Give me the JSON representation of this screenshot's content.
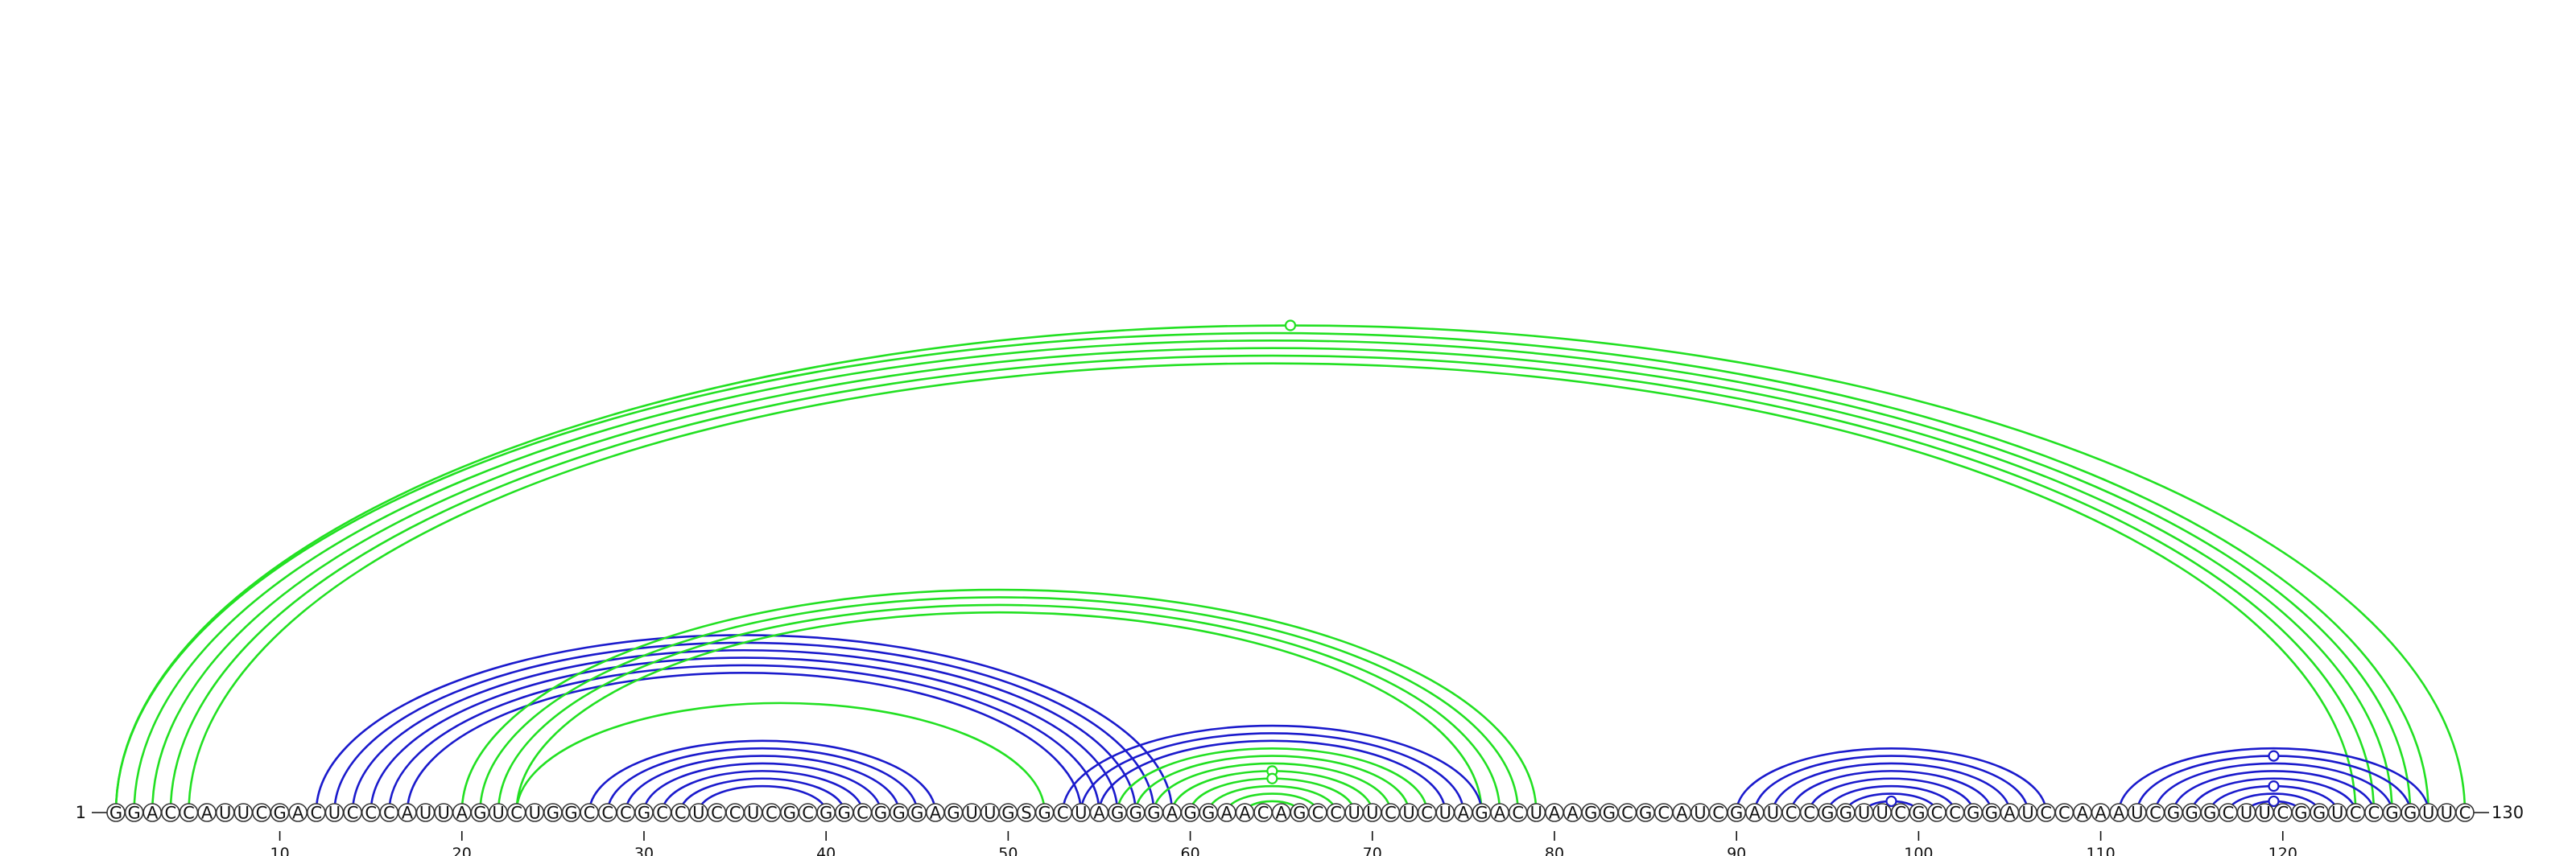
{
  "sequence": "GGACCAUUCGACUCCCAUUAGUCUGGCCCGCCUCCUCGCGGCGGGAGUUGSGCUAGGGAGGAACAGCCUUCUCUAGACUAAGGCGCAUCGAUCCGGUUCGCCGGAUCCAAAUCGGGCUUCGGUCCGGUUC",
  "start_label": "1",
  "end_label": "130",
  "tick_labels": [
    "10",
    "20",
    "30",
    "40",
    "50",
    "60",
    "70",
    "80",
    "90",
    "100",
    "110",
    "120"
  ],
  "colors": {
    "blue": "#1a1acc",
    "green": "#22e022"
  },
  "arcs": [
    {
      "i": 1,
      "j": 128,
      "color": "green"
    },
    {
      "i": 2,
      "j": 127,
      "color": "green"
    },
    {
      "i": 3,
      "j": 126,
      "color": "green"
    },
    {
      "i": 4,
      "j": 125,
      "color": "green"
    },
    {
      "i": 5,
      "j": 124,
      "color": "green"
    },
    {
      "i": 1,
      "j": 130,
      "color": "green"
    },
    {
      "i": 12,
      "j": 59,
      "color": "blue"
    },
    {
      "i": 13,
      "j": 58,
      "color": "blue"
    },
    {
      "i": 14,
      "j": 57,
      "color": "blue"
    },
    {
      "i": 15,
      "j": 56,
      "color": "blue"
    },
    {
      "i": 16,
      "j": 55,
      "color": "blue"
    },
    {
      "i": 17,
      "j": 54,
      "color": "blue"
    },
    {
      "i": 20,
      "j": 79,
      "color": "green"
    },
    {
      "i": 21,
      "j": 78,
      "color": "green"
    },
    {
      "i": 22,
      "j": 77,
      "color": "green"
    },
    {
      "i": 23,
      "j": 76,
      "color": "green"
    },
    {
      "i": 23,
      "j": 52,
      "color": "green"
    },
    {
      "i": 27,
      "j": 46,
      "color": "blue"
    },
    {
      "i": 28,
      "j": 45,
      "color": "blue"
    },
    {
      "i": 29,
      "j": 44,
      "color": "blue"
    },
    {
      "i": 30,
      "j": 43,
      "color": "blue"
    },
    {
      "i": 31,
      "j": 42,
      "color": "blue"
    },
    {
      "i": 32,
      "j": 41,
      "color": "blue"
    },
    {
      "i": 33,
      "j": 40,
      "color": "blue"
    },
    {
      "i": 53,
      "j": 76,
      "color": "blue"
    },
    {
      "i": 54,
      "j": 75,
      "color": "blue"
    },
    {
      "i": 55,
      "j": 74,
      "color": "blue"
    },
    {
      "i": 56,
      "j": 73,
      "color": "green"
    },
    {
      "i": 57,
      "j": 72,
      "color": "green"
    },
    {
      "i": 58,
      "j": 71,
      "color": "green"
    },
    {
      "i": 59,
      "j": 70,
      "color": "green"
    },
    {
      "i": 60,
      "j": 69,
      "color": "green"
    },
    {
      "i": 61,
      "j": 68,
      "color": "green"
    },
    {
      "i": 62,
      "j": 67,
      "color": "green"
    },
    {
      "i": 63,
      "j": 66,
      "color": "green"
    },
    {
      "i": 90,
      "j": 107,
      "color": "blue"
    },
    {
      "i": 91,
      "j": 106,
      "color": "blue"
    },
    {
      "i": 92,
      "j": 105,
      "color": "blue"
    },
    {
      "i": 93,
      "j": 104,
      "color": "blue"
    },
    {
      "i": 94,
      "j": 103,
      "color": "blue"
    },
    {
      "i": 95,
      "j": 102,
      "color": "blue"
    },
    {
      "i": 96,
      "j": 101,
      "color": "blue"
    },
    {
      "i": 97,
      "j": 100,
      "color": "blue"
    },
    {
      "i": 111,
      "j": 128,
      "color": "blue"
    },
    {
      "i": 112,
      "j": 127,
      "color": "blue"
    },
    {
      "i": 113,
      "j": 126,
      "color": "blue"
    },
    {
      "i": 114,
      "j": 125,
      "color": "blue"
    },
    {
      "i": 115,
      "j": 124,
      "color": "blue"
    },
    {
      "i": 116,
      "j": 123,
      "color": "blue"
    },
    {
      "i": 117,
      "j": 122,
      "color": "blue"
    },
    {
      "i": 118,
      "j": 121,
      "color": "blue"
    }
  ],
  "arc_markers": [
    {
      "i": 1,
      "j": 130,
      "color": "green"
    },
    {
      "i": 59,
      "j": 70,
      "color": "green"
    },
    {
      "i": 60,
      "j": 69,
      "color": "green"
    },
    {
      "i": 97,
      "j": 100,
      "color": "blue"
    },
    {
      "i": 112,
      "j": 127,
      "color": "blue"
    },
    {
      "i": 116,
      "j": 123,
      "color": "blue"
    },
    {
      "i": 118,
      "j": 121,
      "color": "blue"
    }
  ]
}
